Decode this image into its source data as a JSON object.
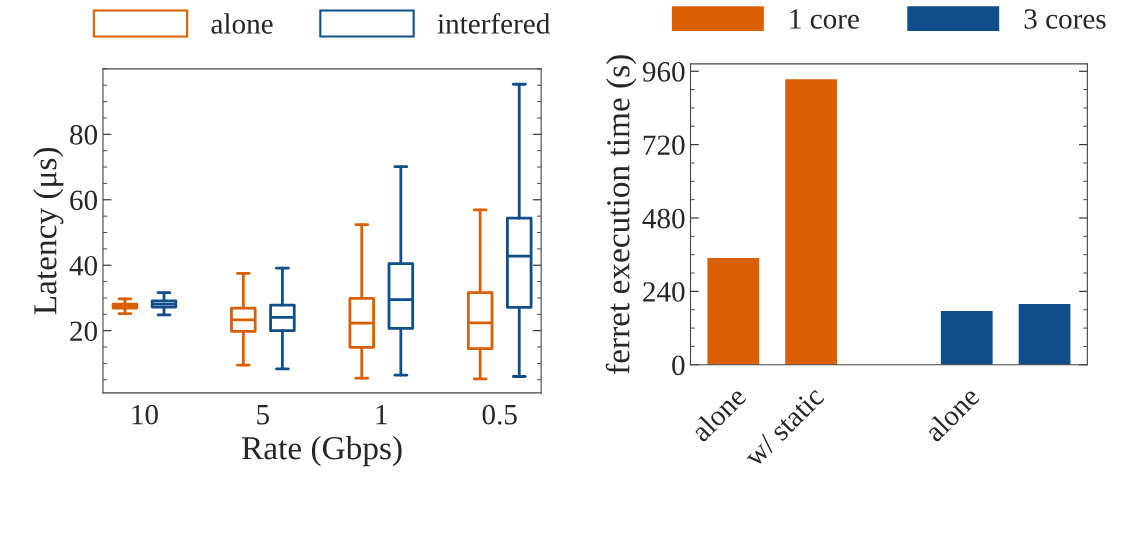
{
  "chart_data": [
    {
      "type": "box",
      "xlabel": "Rate (Gbps)",
      "ylabel": "Latency (μs)",
      "categories": [
        "10",
        "5",
        "1",
        "0.5"
      ],
      "ylim": [
        1,
        100
      ],
      "yticks": [
        20,
        40,
        60,
        80
      ],
      "legend": "top",
      "series": [
        {
          "name": "alone",
          "color": "#d95f02",
          "boxes": [
            {
              "low": 25.2,
              "q1": 26.9,
              "median": 27.5,
              "q3": 28.1,
              "high": 29.7
            },
            {
              "low": 9.5,
              "q1": 19.8,
              "median": 23.3,
              "q3": 26.9,
              "high": 37.5
            },
            {
              "low": 5.5,
              "q1": 14.9,
              "median": 22.3,
              "q3": 29.9,
              "high": 52.4
            },
            {
              "low": 5.3,
              "q1": 14.5,
              "median": 22.4,
              "q3": 31.6,
              "high": 56.9
            }
          ]
        },
        {
          "name": "interfered",
          "color": "#104e8b",
          "boxes": [
            {
              "low": 24.8,
              "q1": 27.2,
              "median": 28.1,
              "q3": 29.1,
              "high": 31.6
            },
            {
              "low": 8.3,
              "q1": 20.0,
              "median": 24.1,
              "q3": 27.8,
              "high": 39.1
            },
            {
              "low": 6.4,
              "q1": 20.7,
              "median": 29.5,
              "q3": 40.5,
              "high": 70.1
            },
            {
              "low": 6.0,
              "q1": 27.1,
              "median": 42.8,
              "q3": 54.4,
              "high": 95.3
            }
          ]
        }
      ]
    },
    {
      "type": "bar",
      "ylabel": "ferret execution time (s)",
      "categories": [
        "alone",
        "w/ static",
        null,
        "alone",
        null
      ],
      "ylim": [
        0,
        984
      ],
      "yticks": [
        0,
        240,
        480,
        720,
        960
      ],
      "legend": "top",
      "series": [
        {
          "name": "1 core",
          "color": "#d95f02",
          "values": [
            349,
            934,
            null,
            null,
            null
          ]
        },
        {
          "name": "3 cores",
          "color": "#104e8b",
          "values": [
            null,
            null,
            null,
            176,
            199
          ]
        }
      ]
    }
  ]
}
